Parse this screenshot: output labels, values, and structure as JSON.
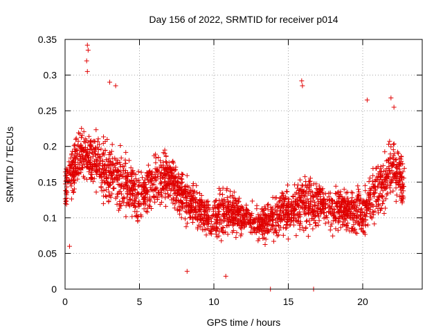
{
  "chart_data": {
    "type": "scatter",
    "title": "Day 156 of 2022, SRMTID for receiver p014",
    "xlabel": "GPS time / hours",
    "ylabel": "SRMTID / TECUs",
    "xlim": [
      0,
      24
    ],
    "ylim": [
      0,
      0.35
    ],
    "xticks": [
      0,
      5,
      10,
      15,
      20
    ],
    "xtick_labels": [
      "0",
      "5",
      "10",
      "15",
      "20"
    ],
    "yticks": [
      0,
      0.05,
      0.1,
      0.15,
      0.2,
      0.25,
      0.3,
      0.35
    ],
    "ytick_labels": [
      "0",
      "0.05",
      "0.1",
      "0.15",
      "0.2",
      "0.25",
      "0.3",
      "0.35"
    ],
    "grid": true,
    "marker": "plus",
    "point_color": "#e00000",
    "envelope": {
      "description": "approximate trend of the dense point cloud (center value and half-spread per hour, TECU)",
      "hours": [
        0,
        1,
        2,
        3,
        4,
        5,
        6,
        7,
        8,
        9,
        10,
        11,
        12,
        13,
        14,
        15,
        16,
        17,
        18,
        19,
        20,
        21,
        22,
        22.8
      ],
      "center": [
        0.14,
        0.19,
        0.18,
        0.16,
        0.15,
        0.13,
        0.15,
        0.16,
        0.13,
        0.11,
        0.1,
        0.11,
        0.1,
        0.09,
        0.1,
        0.11,
        0.12,
        0.12,
        0.11,
        0.11,
        0.11,
        0.14,
        0.17,
        0.15
      ],
      "spread": [
        0.05,
        0.06,
        0.06,
        0.08,
        0.07,
        0.06,
        0.06,
        0.06,
        0.05,
        0.05,
        0.05,
        0.05,
        0.04,
        0.04,
        0.05,
        0.05,
        0.07,
        0.05,
        0.05,
        0.05,
        0.06,
        0.07,
        0.07,
        0.05
      ],
      "point_count": 2600
    },
    "notable_points": [
      {
        "x": 1.5,
        "y": 0.342
      },
      {
        "x": 1.55,
        "y": 0.335
      },
      {
        "x": 1.45,
        "y": 0.32
      },
      {
        "x": 1.5,
        "y": 0.305
      },
      {
        "x": 3.0,
        "y": 0.29
      },
      {
        "x": 3.4,
        "y": 0.285
      },
      {
        "x": 15.9,
        "y": 0.292
      },
      {
        "x": 15.95,
        "y": 0.285
      },
      {
        "x": 20.3,
        "y": 0.265
      },
      {
        "x": 21.9,
        "y": 0.268
      },
      {
        "x": 22.1,
        "y": 0.255
      },
      {
        "x": 13.8,
        "y": 0.0
      },
      {
        "x": 16.7,
        "y": 0.0
      },
      {
        "x": 10.8,
        "y": 0.018
      },
      {
        "x": 8.2,
        "y": 0.025
      },
      {
        "x": 0.3,
        "y": 0.06
      }
    ]
  }
}
